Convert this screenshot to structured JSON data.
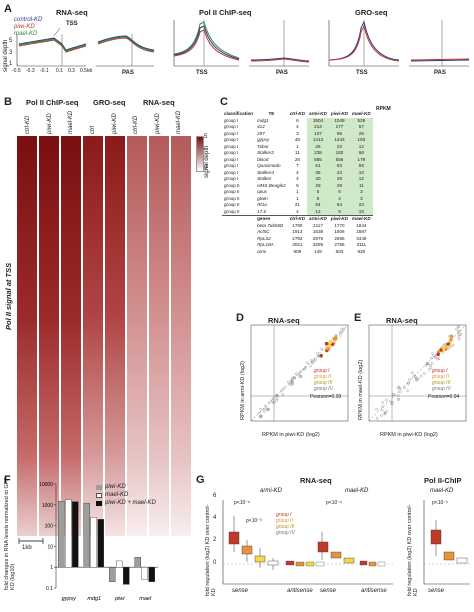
{
  "panels": {
    "A": "A",
    "B": "B",
    "C": "C",
    "D": "D",
    "E": "E",
    "F": "F",
    "G": "G"
  },
  "panelA": {
    "rna_title": "RNA-seq",
    "pol_title": "Pol II ChIP-seq",
    "gro_title": "GRO-seq",
    "legend": [
      "control-KD",
      "piwi-KD",
      "mael-KD"
    ],
    "legend_colors": [
      "#2b3a8c",
      "#c0392b",
      "#2e8b3e"
    ],
    "ylabel": "signal depth",
    "yticks": [
      "1",
      "3",
      "5"
    ],
    "xticks": [
      "-0.5",
      "-0.3",
      "-0.1",
      "0.1",
      "0.3",
      "0.5kb"
    ],
    "tss": "TSS",
    "pas": "PAS"
  },
  "panelB": {
    "groups": [
      "Pol II ChIP-seq",
      "GRO-seq",
      "RNA-seq"
    ],
    "cols": [
      "ctrl-KD",
      "piwi-KD",
      "mael-KD",
      "ctrl",
      "piwi-KD",
      "ctrl-KD",
      "piwi-KD",
      "mael-KD"
    ],
    "side": "Pol II signal at TSS",
    "scale": "1kb",
    "cbar_max": "5",
    "cbar_min": "0",
    "cbar_label": "signal depth"
  },
  "panelC": {
    "header_group": "RPKM",
    "headers": [
      "classification",
      "TE",
      "ctrl-KD",
      "armi-KD",
      "piwi-KD",
      "mael-KD"
    ],
    "rows": [
      [
        "group I",
        "mdg1",
        "6",
        "1504",
        "1049",
        "529"
      ],
      [
        "group I",
        "412",
        "4",
        "214",
        "177",
        "57"
      ],
      [
        "group I",
        "297",
        "3",
        "107",
        "96",
        "25"
      ],
      [
        "group I",
        "gypsy",
        "48",
        "1413",
        "1443",
        "163"
      ],
      [
        "group I",
        "Tabor",
        "1",
        "28",
        "22",
        "12"
      ],
      [
        "group I",
        "Stalker2",
        "11",
        "238",
        "182",
        "66"
      ],
      [
        "group I",
        "blood",
        "28",
        "585",
        "556",
        "179"
      ],
      [
        "group I",
        "Quasimodo",
        "7",
        "61",
        "83",
        "55"
      ],
      [
        "group I",
        "Stalker4",
        "4",
        "35",
        "23",
        "10"
      ],
      [
        "group I",
        "Stalker",
        "4",
        "40",
        "29",
        "12"
      ],
      [
        "group II",
        "HMS-Beagle2",
        "5",
        "28",
        "29",
        "11"
      ],
      [
        "group II",
        "opus",
        "1",
        "5",
        "6",
        "3"
      ],
      [
        "group II",
        "gtwin",
        "1",
        "5",
        "4",
        "3"
      ],
      [
        "group II",
        "Rt1a",
        "21",
        "84",
        "64",
        "23"
      ],
      [
        "group II",
        "17.6",
        "4",
        "12",
        "9",
        "10"
      ]
    ],
    "gene_headers": [
      "genes",
      "ctrl-KD",
      "armi-KD",
      "piwi-KD",
      "mael-KD"
    ],
    "gene_rows": [
      [
        "beta Tub56D",
        "1790",
        "2117",
        "1770",
        "1844"
      ],
      [
        "Act5C",
        "1913",
        "1639",
        "1806",
        "1587"
      ],
      [
        "RpL32",
        "2793",
        "2979",
        "2596",
        "3449"
      ],
      [
        "RpL18A",
        "3021",
        "3289",
        "2756",
        "3111"
      ],
      [
        "armi",
        "809",
        "148",
        "603",
        "820"
      ]
    ]
  },
  "panelD": {
    "title": "RNA-seq",
    "ylabel": "RPKM in armi-KD (log2)",
    "xlabel": "RPKM in piwi-KD (log2)",
    "legend": [
      "group I",
      "group II",
      "group III",
      "group IV"
    ],
    "pearson": "Pearson=0.99"
  },
  "panelE": {
    "title": "RNA-seq",
    "ylabel": "RPKM in mael-KD (log2)",
    "xlabel": "RPKM in piwi-KD (log2)",
    "legend": [
      "group I",
      "group II",
      "group III",
      "group IV"
    ],
    "pearson": "Pearson=0.94"
  },
  "colors": {
    "g1": "#c0392b",
    "g2": "#e8923a",
    "g3": "#f2d64b",
    "g4": "#aaaaaa",
    "heat": "#8b1a1a"
  },
  "chart_data": [
    {
      "type": "bar",
      "panel": "F",
      "ylabel": "fold changes in RNA levels normalized to GFP KD (log10)",
      "yticks": [
        "10000",
        "1000",
        "100",
        "10",
        "1",
        "0.1"
      ],
      "categories": [
        "gypsy",
        "mdg1",
        "piwi",
        "mael"
      ],
      "series": [
        {
          "name": "piwi-KD",
          "values": [
            1500,
            1200,
            0.2,
            3
          ]
        },
        {
          "name": "mael-KD",
          "values": [
            1800,
            250,
            2,
            0.25
          ]
        },
        {
          "name": "piwi-KD + mael-KD",
          "values": [
            1400,
            200,
            0.15,
            0.2
          ]
        }
      ]
    }
  ],
  "panelG": {
    "rna_title": "RNA-seq",
    "pol_title": "Pol II-ChIP",
    "armi": "armi-KD",
    "mael": "mael-KD",
    "mael2": "mael-KD",
    "ylabel": "fold regulation (log2) KD over control-KD",
    "yticks": [
      "0",
      "2",
      "4",
      "6"
    ],
    "sense": "sense",
    "antisense": "antisense",
    "p1": "p<10⁻⁸",
    "p2": "p<10⁻³",
    "p3": "p<10⁻⁶",
    "p4": "p<10⁻⁵",
    "legend": [
      "group I",
      "group II",
      "group III",
      "group IV"
    ]
  }
}
